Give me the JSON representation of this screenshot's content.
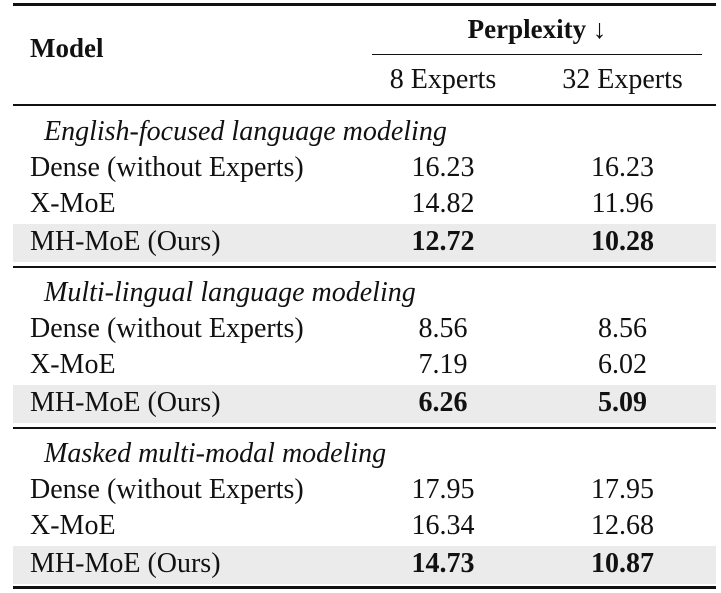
{
  "table": {
    "model_header": "Model",
    "metric_header": "Perplexity ↓",
    "columns": [
      "8 Experts",
      "32 Experts"
    ],
    "groups": [
      {
        "title": "English-focused language modeling",
        "rows": [
          {
            "model": "Dense (without Experts)",
            "values": [
              "16.23",
              "16.23"
            ],
            "highlight": false
          },
          {
            "model": "X-MoE",
            "values": [
              "14.82",
              "11.96"
            ],
            "highlight": false
          },
          {
            "model": "MH-MoE (Ours)",
            "values": [
              "12.72",
              "10.28"
            ],
            "highlight": true
          }
        ]
      },
      {
        "title": "Multi-lingual language modeling",
        "rows": [
          {
            "model": "Dense (without Experts)",
            "values": [
              "8.56",
              "8.56"
            ],
            "highlight": false
          },
          {
            "model": "X-MoE",
            "values": [
              "7.19",
              "6.02"
            ],
            "highlight": false
          },
          {
            "model": "MH-MoE (Ours)",
            "values": [
              "6.26",
              "5.09"
            ],
            "highlight": true
          }
        ]
      },
      {
        "title": "Masked multi-modal modeling",
        "rows": [
          {
            "model": "Dense (without Experts)",
            "values": [
              "17.95",
              "17.95"
            ],
            "highlight": false
          },
          {
            "model": "X-MoE",
            "values": [
              "16.34",
              "12.68"
            ],
            "highlight": false
          },
          {
            "model": "MH-MoE (Ours)",
            "values": [
              "14.73",
              "10.87"
            ],
            "highlight": true
          }
        ]
      }
    ]
  }
}
